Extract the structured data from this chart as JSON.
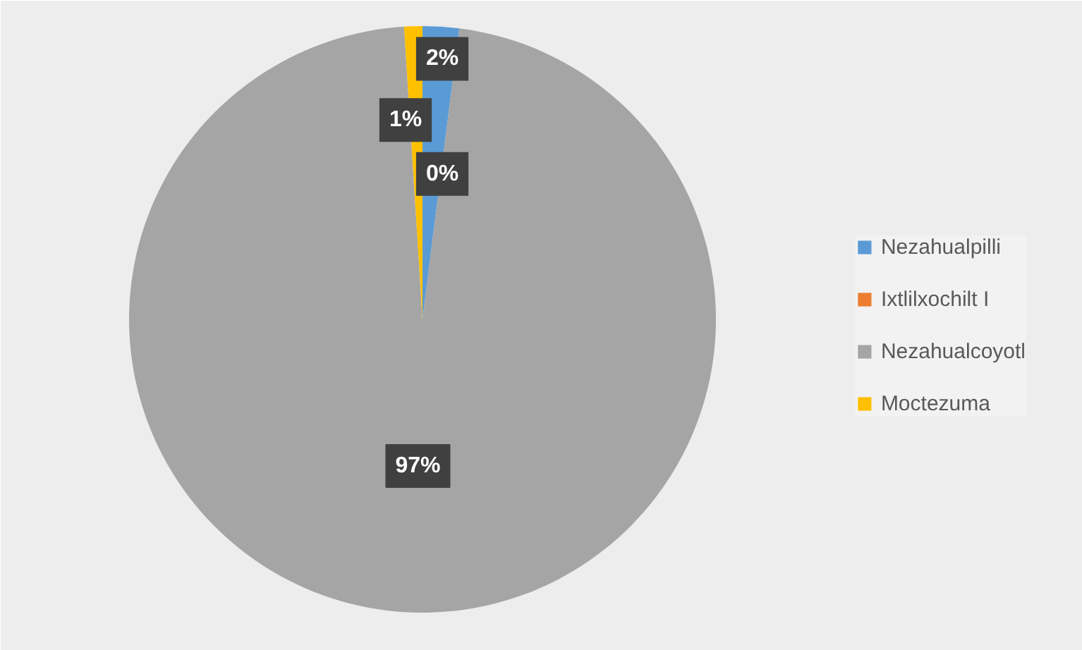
{
  "chart_data": {
    "type": "pie",
    "categories": [
      "Nezahualpilli",
      "Ixtlilxochilt I",
      "Nezahualcoyotl",
      "Moctezuma"
    ],
    "values": [
      2,
      0,
      97,
      1
    ],
    "colors": [
      "#5b9bd5",
      "#ed7d31",
      "#a5a5a5",
      "#ffc000"
    ],
    "value_labels": [
      "2%",
      "0%",
      "97%",
      "1%"
    ],
    "legend": "right"
  }
}
